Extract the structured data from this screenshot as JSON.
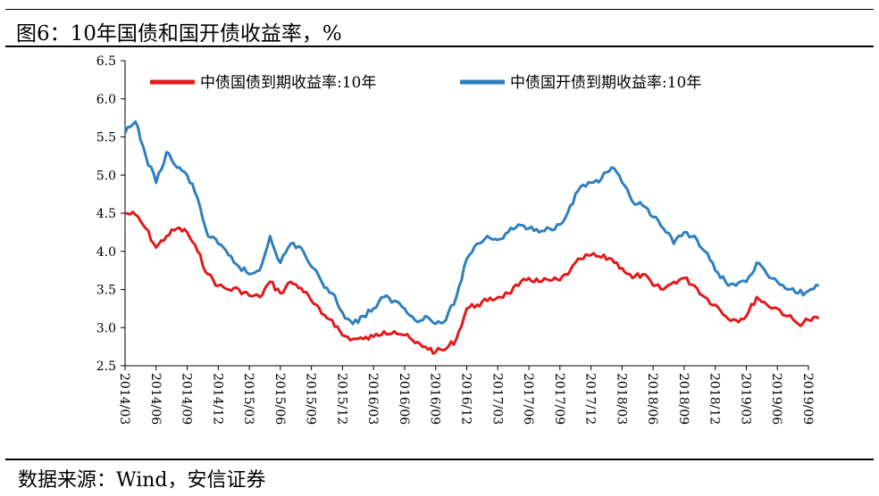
{
  "title": "图6：10年国债和国开债收益率，%",
  "source": "数据来源：Wind，安信证券",
  "chart_data": {
    "type": "line",
    "title": "图6：10年国债和国开债收益率，%",
    "ylabel": "%",
    "ylim": [
      2.5,
      6.5
    ],
    "yticks": [
      "2.5",
      "3.0",
      "3.5",
      "4.0",
      "4.5",
      "5.0",
      "5.5",
      "6.0",
      "6.5"
    ],
    "xticks": [
      "2014/03",
      "2014/06",
      "2014/09",
      "2014/12",
      "2015/03",
      "2015/06",
      "2015/09",
      "2015/12",
      "2016/03",
      "2016/06",
      "2016/09",
      "2016/12",
      "2017/03",
      "2017/06",
      "2017/09",
      "2017/12",
      "2018/03",
      "2018/06",
      "2018/09",
      "2018/12",
      "2019/03",
      "2019/06",
      "2019/09"
    ],
    "legend_position": "top",
    "grid": false,
    "series": [
      {
        "name": "中债国债到期收益率:10年",
        "color": "#e31a1c",
        "x": [
          "2014/03",
          "2014/04",
          "2014/05",
          "2014/06",
          "2014/07",
          "2014/08",
          "2014/09",
          "2014/10",
          "2014/11",
          "2014/12",
          "2015/01",
          "2015/02",
          "2015/03",
          "2015/04",
          "2015/05",
          "2015/06",
          "2015/07",
          "2015/08",
          "2015/09",
          "2015/10",
          "2015/11",
          "2015/12",
          "2016/01",
          "2016/02",
          "2016/03",
          "2016/04",
          "2016/05",
          "2016/06",
          "2016/07",
          "2016/08",
          "2016/09",
          "2016/10",
          "2016/11",
          "2016/12",
          "2017/01",
          "2017/02",
          "2017/03",
          "2017/04",
          "2017/05",
          "2017/06",
          "2017/07",
          "2017/08",
          "2017/09",
          "2017/10",
          "2017/11",
          "2017/12",
          "2018/01",
          "2018/02",
          "2018/03",
          "2018/04",
          "2018/05",
          "2018/06",
          "2018/07",
          "2018/08",
          "2018/09",
          "2018/10",
          "2018/11",
          "2018/12",
          "2019/01",
          "2019/02",
          "2019/03",
          "2019/04",
          "2019/05",
          "2019/06",
          "2019/07",
          "2019/08",
          "2019/09",
          "2019/10"
        ],
        "values": [
          4.5,
          4.48,
          4.3,
          4.05,
          4.2,
          4.3,
          4.25,
          4.0,
          3.7,
          3.55,
          3.5,
          3.5,
          3.42,
          3.4,
          3.6,
          3.45,
          3.6,
          3.52,
          3.35,
          3.18,
          3.1,
          2.9,
          2.85,
          2.85,
          2.88,
          2.95,
          2.95,
          2.9,
          2.8,
          2.75,
          2.68,
          2.72,
          2.85,
          3.25,
          3.3,
          3.35,
          3.4,
          3.45,
          3.55,
          3.65,
          3.6,
          3.62,
          3.62,
          3.75,
          3.9,
          3.95,
          3.92,
          3.9,
          3.78,
          3.65,
          3.7,
          3.55,
          3.5,
          3.6,
          3.65,
          3.55,
          3.4,
          3.3,
          3.15,
          3.1,
          3.15,
          3.4,
          3.3,
          3.25,
          3.15,
          3.05,
          3.1,
          3.12
        ]
      },
      {
        "name": "中债国开债到期收益率:10年",
        "color": "#2e7fbf",
        "x": [
          "2014/03",
          "2014/04",
          "2014/05",
          "2014/06",
          "2014/07",
          "2014/08",
          "2014/09",
          "2014/10",
          "2014/11",
          "2014/12",
          "2015/01",
          "2015/02",
          "2015/03",
          "2015/04",
          "2015/05",
          "2015/06",
          "2015/07",
          "2015/08",
          "2015/09",
          "2015/10",
          "2015/11",
          "2015/12",
          "2016/01",
          "2016/02",
          "2016/03",
          "2016/04",
          "2016/05",
          "2016/06",
          "2016/07",
          "2016/08",
          "2016/09",
          "2016/10",
          "2016/11",
          "2016/12",
          "2017/01",
          "2017/02",
          "2017/03",
          "2017/04",
          "2017/05",
          "2017/06",
          "2017/07",
          "2017/08",
          "2017/09",
          "2017/10",
          "2017/11",
          "2017/12",
          "2018/01",
          "2018/02",
          "2018/03",
          "2018/04",
          "2018/05",
          "2018/06",
          "2018/07",
          "2018/08",
          "2018/09",
          "2018/10",
          "2018/11",
          "2018/12",
          "2019/01",
          "2019/02",
          "2019/03",
          "2019/04",
          "2019/05",
          "2019/06",
          "2019/07",
          "2019/08",
          "2019/09",
          "2019/10"
        ],
        "values": [
          5.55,
          5.7,
          5.25,
          4.9,
          5.3,
          5.1,
          5.0,
          4.7,
          4.2,
          4.1,
          3.95,
          3.8,
          3.7,
          3.75,
          4.2,
          3.85,
          4.1,
          4.05,
          3.8,
          3.6,
          3.45,
          3.2,
          3.05,
          3.15,
          3.25,
          3.4,
          3.35,
          3.25,
          3.1,
          3.15,
          3.05,
          3.1,
          3.4,
          3.9,
          4.1,
          4.2,
          4.15,
          4.25,
          4.35,
          4.3,
          4.25,
          4.3,
          4.35,
          4.6,
          4.85,
          4.9,
          4.95,
          5.1,
          4.9,
          4.65,
          4.6,
          4.45,
          4.3,
          4.1,
          4.25,
          4.2,
          4.0,
          3.75,
          3.6,
          3.55,
          3.6,
          3.85,
          3.7,
          3.6,
          3.5,
          3.45,
          3.48,
          3.55
        ]
      }
    ]
  }
}
